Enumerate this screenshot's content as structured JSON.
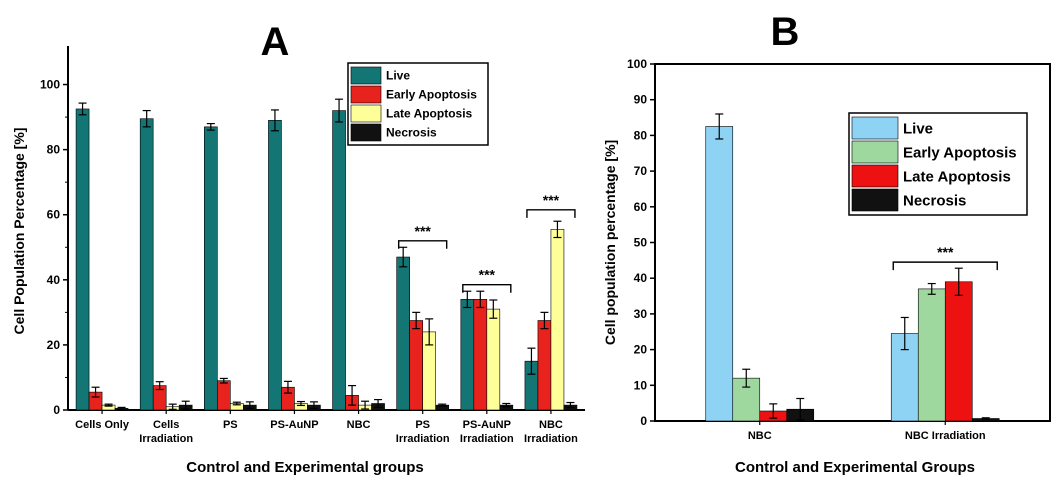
{
  "chart_data": [
    {
      "type": "bar",
      "panel_label": "A",
      "xlabel": "Control and Experimental groups",
      "ylabel": "Cell Population Percentage [%]",
      "ylim": [
        0,
        110
      ],
      "yticks": [
        0,
        20,
        40,
        60,
        80,
        100
      ],
      "grid": false,
      "legend_position": "top-right",
      "categories": [
        [
          "Cells Only"
        ],
        [
          "Cells",
          "Irradiation"
        ],
        [
          "PS"
        ],
        [
          "PS-AuNP"
        ],
        [
          "NBC"
        ],
        [
          "PS",
          "Irradiation"
        ],
        [
          "PS-AuNP",
          "Irradiation"
        ],
        [
          "NBC",
          "Irradiation"
        ]
      ],
      "series": [
        {
          "name": "Live",
          "color": "#147575",
          "values": [
            92.5,
            89.5,
            87,
            89,
            92,
            47,
            34,
            15
          ],
          "errors": [
            1.8,
            2.5,
            1.0,
            3.2,
            3.5,
            3.0,
            2.5,
            4.0
          ]
        },
        {
          "name": "Early Apoptosis",
          "color": "#e8221c",
          "values": [
            5.5,
            7.5,
            9,
            7,
            4.5,
            27.5,
            34,
            27.5
          ],
          "errors": [
            1.5,
            1.2,
            0.7,
            1.8,
            3.0,
            2.5,
            2.5,
            2.5
          ]
        },
        {
          "name": "Late Apoptosis",
          "color": "#ffff99",
          "values": [
            1.5,
            1.0,
            2.0,
            2.0,
            1.5,
            24,
            31,
            55.5
          ],
          "errors": [
            0.3,
            0.8,
            0.4,
            0.6,
            1.2,
            4.0,
            2.8,
            2.5
          ]
        },
        {
          "name": "Necrosis",
          "color": "#111111",
          "values": [
            0.5,
            1.5,
            1.5,
            1.5,
            2.0,
            1.5,
            1.5,
            1.5
          ],
          "errors": [
            0.3,
            1.2,
            1.0,
            1.0,
            1.2,
            0.3,
            0.5,
            0.8
          ]
        }
      ],
      "annotations": [
        {
          "text": "***",
          "from_category": 5,
          "to_category": 5,
          "y": 52
        },
        {
          "text": "***",
          "from_category": 6,
          "to_category": 6,
          "y": 38.5
        },
        {
          "text": "***",
          "from_category": 7,
          "to_category": 7,
          "y": 61.5
        }
      ]
    },
    {
      "type": "bar",
      "panel_label": "B",
      "xlabel": "Control and Experimental Groups",
      "ylabel": "Cell population percentage [%]",
      "ylim": [
        0,
        100
      ],
      "yticks": [
        0,
        10,
        20,
        30,
        40,
        50,
        60,
        70,
        80,
        90,
        100
      ],
      "grid": false,
      "legend_position": "top-right",
      "categories": [
        [
          "NBC"
        ],
        [
          "NBC Irradiation"
        ]
      ],
      "series": [
        {
          "name": "Live",
          "color": "#8fd3f4",
          "values": [
            82.5,
            24.5
          ],
          "errors": [
            3.5,
            4.5
          ]
        },
        {
          "name": "Early Apoptosis",
          "color": "#9fd89f",
          "values": [
            12,
            37
          ],
          "errors": [
            2.5,
            1.5
          ]
        },
        {
          "name": "Late Apoptosis",
          "color": "#ee1111",
          "values": [
            2.8,
            39
          ],
          "errors": [
            2.0,
            3.8
          ]
        },
        {
          "name": "Necrosis",
          "color": "#111111",
          "values": [
            3.3,
            0.7
          ],
          "errors": [
            3.0,
            0.2
          ]
        }
      ],
      "annotations": [
        {
          "text": "***",
          "from_category": 1,
          "to_category": 1,
          "y": 44.5
        }
      ]
    }
  ]
}
